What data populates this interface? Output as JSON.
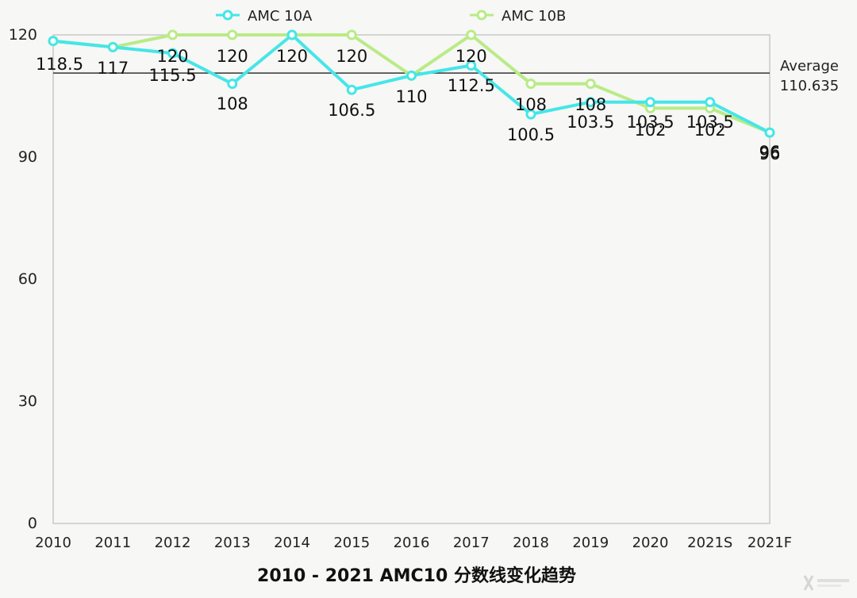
{
  "chart_data": {
    "type": "line",
    "title": "2010 - 2021 AMC10 分数线变化趋势",
    "categories": [
      "2010",
      "2011",
      "2012",
      "2013",
      "2014",
      "2015",
      "2016",
      "2017",
      "2018",
      "2019",
      "2020",
      "2021S",
      "2021F"
    ],
    "ylim": [
      0,
      120
    ],
    "yticks": [
      0,
      30,
      60,
      90,
      120
    ],
    "grid": false,
    "legend_position": "top",
    "series": [
      {
        "name": "AMC 10A",
        "color": "#45e6e8",
        "values": [
          118.5,
          117,
          115.5,
          108,
          120,
          106.5,
          110,
          112.5,
          100.5,
          103.5,
          103.5,
          103.5,
          96
        ],
        "labels": [
          "118.5",
          "117",
          "115.5",
          "108",
          "120",
          "106.5",
          "110",
          "112.5",
          "100.5",
          "103.5",
          "103.5",
          "103.5",
          "96"
        ]
      },
      {
        "name": "AMC 10B",
        "color": "#b9eb86",
        "values": [
          118.5,
          117,
          120,
          120,
          120,
          120,
          110,
          120,
          108,
          108,
          102,
          102,
          96
        ],
        "labels": [
          "",
          "",
          "120",
          "120",
          "",
          "120",
          "",
          "120",
          "108",
          "108",
          "102",
          "102",
          "96"
        ]
      }
    ],
    "reference_line": {
      "label": "Average",
      "value": 110.635,
      "value_label": "110.635",
      "color": "#333333"
    }
  }
}
